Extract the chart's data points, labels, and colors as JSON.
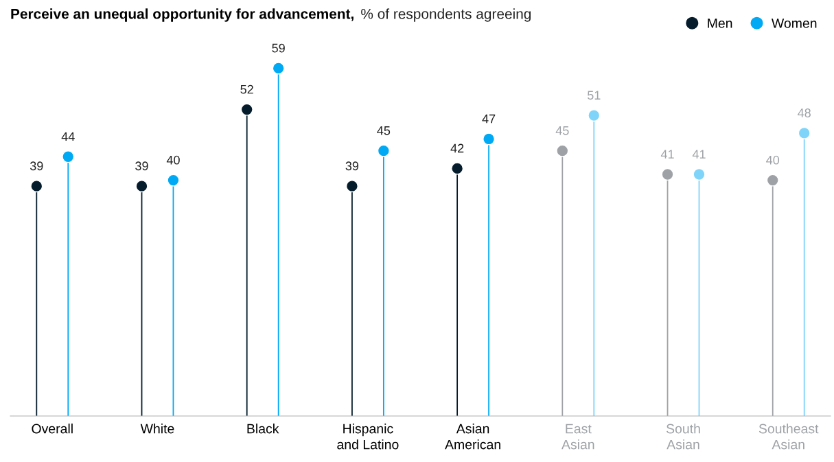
{
  "chart_data": {
    "type": "lollipop",
    "title": "Perceive an unequal opportunity for advancement,",
    "subtitle": "% of respondents agreeing",
    "categories": [
      "Overall",
      "White",
      "Black",
      "Hispanic\nand Latino",
      "Asian\nAmerican",
      "East\nAsian",
      "South\nAsian",
      "Southeast\nAsian"
    ],
    "series": [
      {
        "name": "Men",
        "color": "#051c2c",
        "colors": [
          "#051c2c",
          "#051c2c",
          "#051c2c",
          "#051c2c",
          "#051c2c",
          "#9ea2a6",
          "#9ea2a6",
          "#9ea2a6"
        ],
        "values": [
          39,
          39,
          52,
          39,
          42,
          45,
          41,
          40
        ]
      },
      {
        "name": "Women",
        "color": "#00a9f4",
        "colors": [
          "#00a9f4",
          "#00a9f4",
          "#00a9f4",
          "#00a9f4",
          "#00a9f4",
          "#7fd4f9",
          "#7fd4f9",
          "#7fd4f9"
        ],
        "values": [
          44,
          40,
          59,
          45,
          47,
          51,
          41,
          48
        ]
      }
    ],
    "data_labels": true,
    "tick_labels": "x",
    "legend": "top right",
    "marker": "circle",
    "grid": false
  }
}
